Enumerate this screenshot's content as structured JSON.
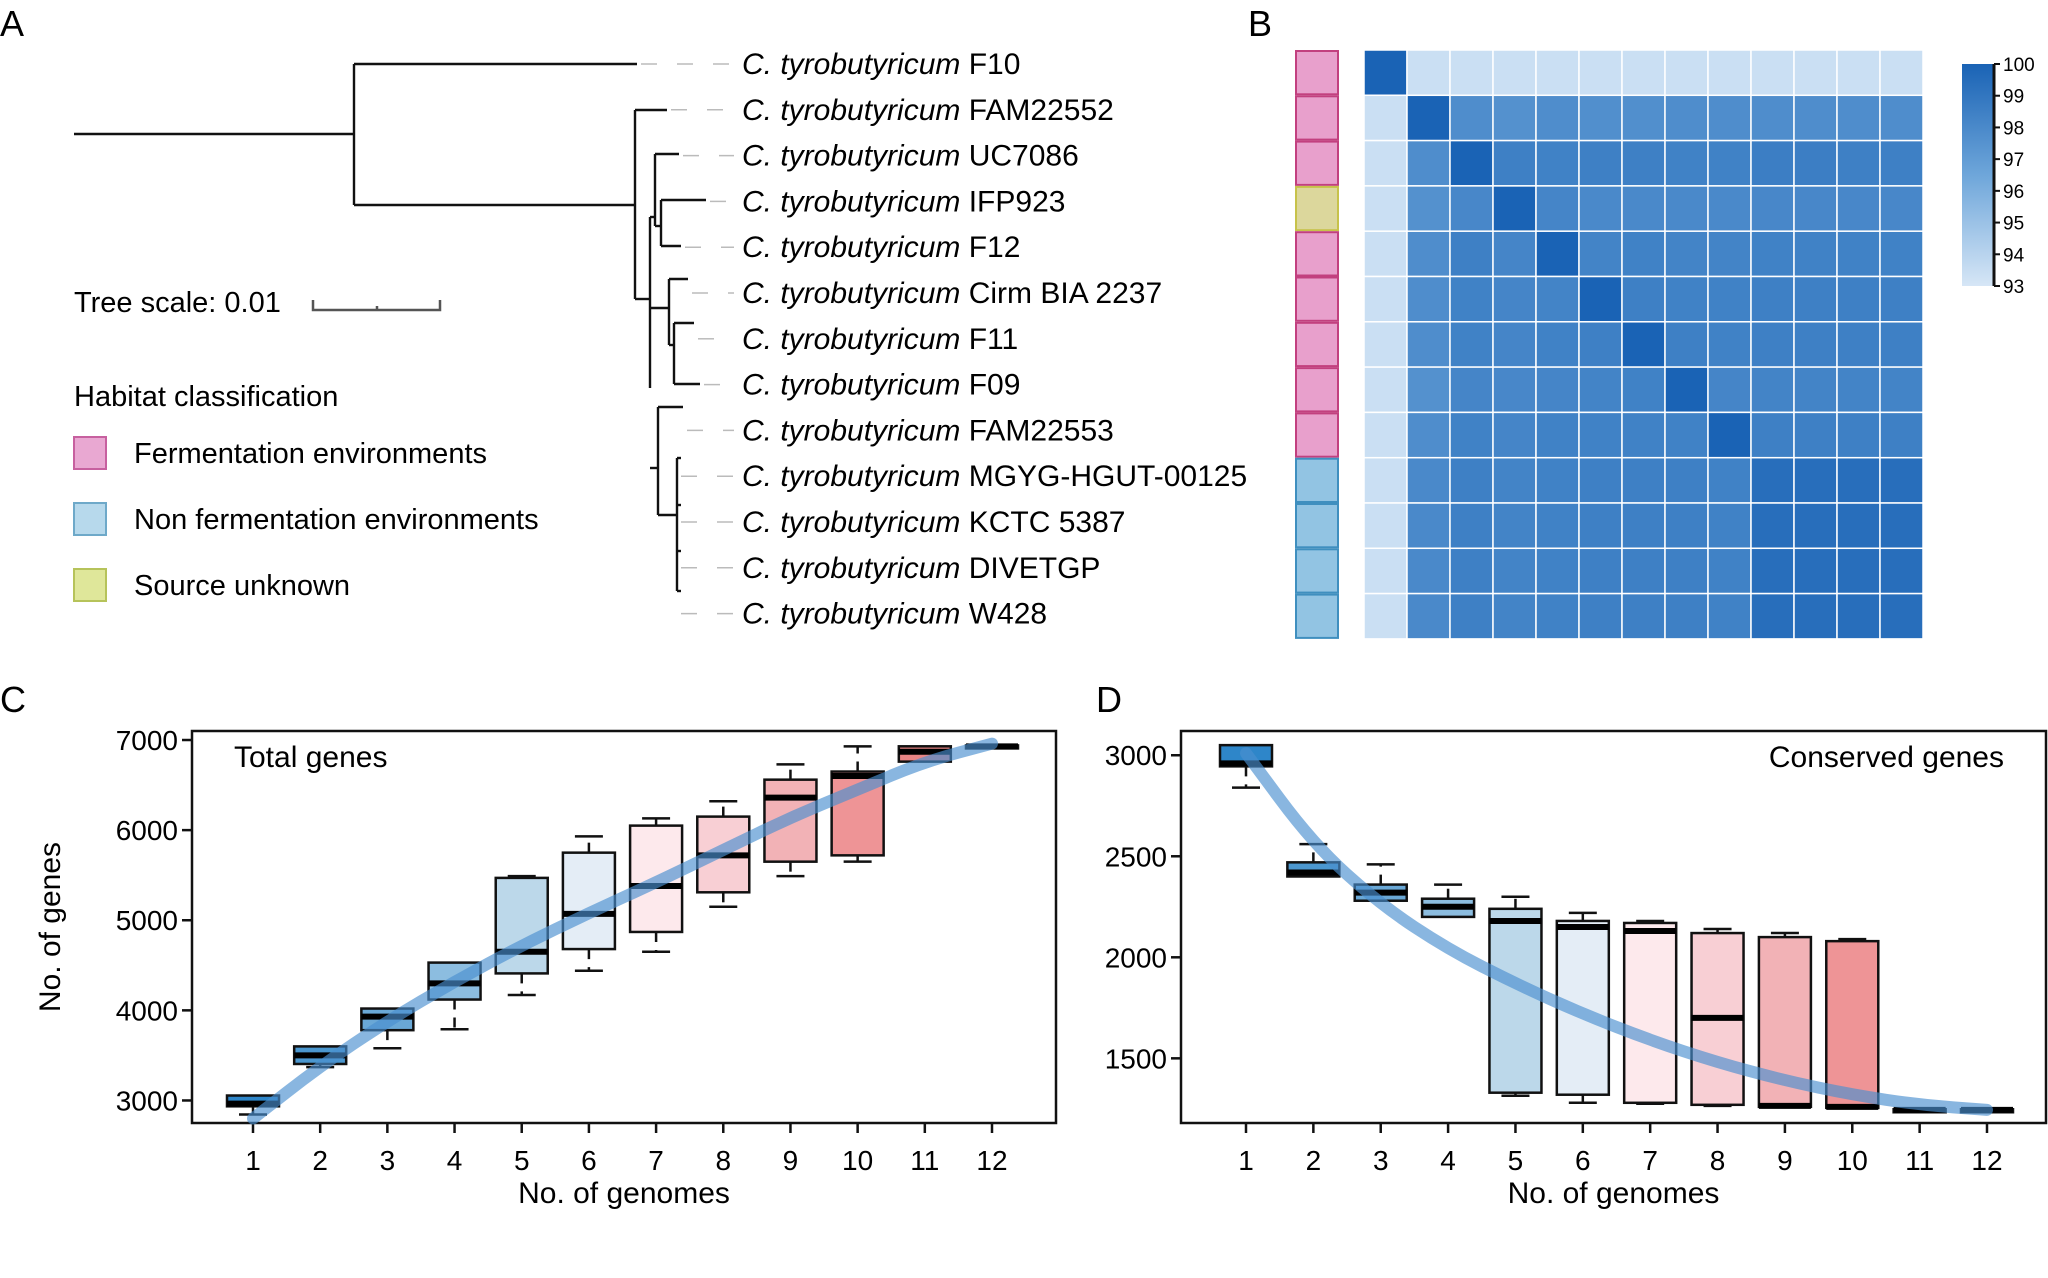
{
  "panels": {
    "A": {
      "label": "A",
      "tree_scale_label": "Tree scale: 0.01",
      "legend_title": "Habitat classification",
      "legend": [
        {
          "label": "Fermentation environments",
          "fill": "#e9a8d2",
          "stroke": "#c7609f"
        },
        {
          "label": "Non fermentation environments",
          "fill": "#b7d9ec",
          "stroke": "#6ea9c9"
        },
        {
          "label": "Source unknown",
          "fill": "#dfe79a",
          "stroke": "#b6c35a"
        }
      ],
      "taxa": [
        {
          "genus": "C. tyrobutyricum",
          "strain": "F10",
          "habitat": 0
        },
        {
          "genus": "C. tyrobutyricum",
          "strain": "FAM22552",
          "habitat": 0
        },
        {
          "genus": "C. tyrobutyricum",
          "strain": "UC7086",
          "habitat": 0
        },
        {
          "genus": "C. tyrobutyricum",
          "strain": "IFP923",
          "habitat": 2
        },
        {
          "genus": "C. tyrobutyricum",
          "strain": "F12",
          "habitat": 0
        },
        {
          "genus": "C. tyrobutyricum",
          "strain": "Cirm BIA 2237",
          "habitat": 0
        },
        {
          "genus": "C. tyrobutyricum",
          "strain": "F11",
          "habitat": 0
        },
        {
          "genus": "C. tyrobutyricum",
          "strain": "F09",
          "habitat": 0
        },
        {
          "genus": "C. tyrobutyricum",
          "strain": "FAM22553",
          "habitat": 0
        },
        {
          "genus": "C. tyrobutyricum",
          "strain": "MGYG-HGUT-00125",
          "habitat": 1
        },
        {
          "genus": "C. tyrobutyricum",
          "strain": "KCTC 5387",
          "habitat": 1
        },
        {
          "genus": "C. tyrobutyricum",
          "strain": "DIVETGP",
          "habitat": 1
        },
        {
          "genus": "C. tyrobutyricum",
          "strain": "W428",
          "habitat": 1
        }
      ]
    },
    "B": {
      "label": "B",
      "annotation_colors": [
        {
          "fill": "#e8a0cc",
          "stroke": "#c2407f"
        },
        {
          "fill": "#92c4e3",
          "stroke": "#3f8fbf"
        },
        {
          "fill": "#dcd79c",
          "stroke": "#c7c24a"
        }
      ],
      "colorbar": {
        "min": 93,
        "max": 100,
        "ticks": [
          "100",
          "99",
          "98",
          "97",
          "96",
          "95",
          "94",
          "93"
        ],
        "low_color": "#d3e4f5",
        "high_color": "#1a63b5"
      }
    },
    "C": {
      "label": "C"
    },
    "D": {
      "label": "D"
    }
  },
  "chart_data": [
    {
      "type": "heatmap",
      "title": "ANI heatmap",
      "rows": [
        "F10",
        "FAM22552",
        "UC7086",
        "IFP923",
        "F12",
        "Cirm BIA 2237",
        "F11",
        "F09",
        "FAM22553",
        "MGYG-HGUT-00125",
        "KCTC 5387",
        "DIVETGP",
        "W428"
      ],
      "cols": [
        "F10",
        "FAM22552",
        "UC7086",
        "IFP923",
        "F12",
        "Cirm BIA 2237",
        "F11",
        "F09",
        "FAM22553",
        "MGYG-HGUT-00125",
        "KCTC 5387",
        "DIVETGP",
        "W428"
      ],
      "value_range": [
        93,
        100
      ],
      "values": [
        [
          100,
          93.3,
          93.3,
          93.3,
          93.3,
          93.3,
          93.3,
          93.3,
          93.3,
          93.3,
          93.3,
          93.3,
          93.3
        ],
        [
          93.3,
          100,
          97.8,
          97.6,
          97.8,
          97.7,
          97.7,
          97.8,
          97.8,
          97.8,
          97.8,
          97.8,
          97.8
        ],
        [
          93.3,
          97.8,
          100,
          98.5,
          98.4,
          98.5,
          98.5,
          98.4,
          98.4,
          98.6,
          98.6,
          98.5,
          98.5
        ],
        [
          93.3,
          97.6,
          98.1,
          100,
          98.2,
          98.0,
          98.0,
          98.0,
          98.0,
          98.1,
          98.1,
          98.1,
          98.1
        ],
        [
          93.3,
          97.8,
          98.5,
          98.2,
          100,
          98.3,
          98.4,
          98.3,
          98.3,
          98.4,
          98.4,
          98.4,
          98.4
        ],
        [
          93.3,
          97.8,
          98.4,
          98.2,
          98.3,
          100,
          98.5,
          98.4,
          98.4,
          98.5,
          98.5,
          98.5,
          98.5
        ],
        [
          93.3,
          97.8,
          98.4,
          98.2,
          98.4,
          98.5,
          100,
          98.5,
          98.4,
          98.5,
          98.5,
          98.5,
          98.5
        ],
        [
          93.3,
          97.6,
          98.2,
          98.1,
          98.2,
          98.3,
          98.4,
          100,
          98.2,
          98.3,
          98.3,
          98.3,
          98.3
        ],
        [
          93.3,
          97.8,
          98.4,
          98.2,
          98.4,
          98.4,
          98.4,
          98.4,
          100,
          98.5,
          98.5,
          98.5,
          98.5
        ],
        [
          93.3,
          98.0,
          98.5,
          98.3,
          98.4,
          98.5,
          98.5,
          98.5,
          98.4,
          99.4,
          99.4,
          99.4,
          99.4
        ],
        [
          93.3,
          98.0,
          98.5,
          98.3,
          98.4,
          98.5,
          98.5,
          98.5,
          98.4,
          99.4,
          99.4,
          99.4,
          99.4
        ],
        [
          93.3,
          98.0,
          98.5,
          98.3,
          98.4,
          98.5,
          98.5,
          98.5,
          98.4,
          99.4,
          99.4,
          99.4,
          99.4
        ],
        [
          93.3,
          98.0,
          98.5,
          98.3,
          98.4,
          98.5,
          98.5,
          98.5,
          98.4,
          99.4,
          99.4,
          99.4,
          99.4
        ]
      ],
      "colorbar_ticks": [
        100,
        99,
        98,
        97,
        96,
        95,
        94,
        93
      ]
    },
    {
      "type": "box",
      "title": "Total genes",
      "xlabel": "No. of genomes",
      "ylabel": "No. of genes",
      "x": [
        1,
        2,
        3,
        4,
        5,
        6,
        7,
        8,
        9,
        10,
        11,
        12
      ],
      "ylim": [
        2750,
        7100
      ],
      "yticks": [
        3000,
        4000,
        5000,
        6000,
        7000
      ],
      "boxes": [
        {
          "x": 1,
          "low": 2845,
          "q1": 2935,
          "median": 2965,
          "q3": 3055,
          "high": 3055
        },
        {
          "x": 2,
          "low": 3370,
          "q1": 3405,
          "median": 3500,
          "q3": 3600,
          "high": 3600
        },
        {
          "x": 3,
          "low": 3580,
          "q1": 3780,
          "median": 3930,
          "q3": 4020,
          "high": 4020
        },
        {
          "x": 4,
          "low": 3790,
          "q1": 4120,
          "median": 4300,
          "q3": 4530,
          "high": 4530
        },
        {
          "x": 5,
          "low": 4170,
          "q1": 4410,
          "median": 4650,
          "q3": 5470,
          "high": 5490
        },
        {
          "x": 6,
          "low": 4440,
          "q1": 4680,
          "median": 5070,
          "q3": 5750,
          "high": 5930
        },
        {
          "x": 7,
          "low": 4650,
          "q1": 4870,
          "median": 5380,
          "q3": 6050,
          "high": 6130
        },
        {
          "x": 8,
          "low": 5150,
          "q1": 5310,
          "median": 5720,
          "q3": 6150,
          "high": 6320
        },
        {
          "x": 9,
          "low": 5490,
          "q1": 5650,
          "median": 6360,
          "q3": 6560,
          "high": 6730
        },
        {
          "x": 10,
          "low": 5650,
          "q1": 5720,
          "median": 6600,
          "q3": 6650,
          "high": 6930
        },
        {
          "x": 11,
          "low": 6760,
          "q1": 6760,
          "median": 6870,
          "q3": 6930,
          "high": 6930
        },
        {
          "x": 12,
          "low": 6920,
          "q1": 6920,
          "median": 6930,
          "q3": 6940,
          "high": 6940
        }
      ],
      "fit_curve": {
        "x": [
          1,
          2,
          3,
          4,
          5,
          6,
          7,
          8,
          9,
          10,
          11,
          12
        ],
        "y": [
          2800,
          3380,
          3880,
          4320,
          4720,
          5080,
          5420,
          5780,
          6140,
          6450,
          6760,
          6960
        ]
      },
      "box_colors": [
        "#2e86c9",
        "#4b97cf",
        "#6aa8d6",
        "#8cbde0",
        "#bcd8ea",
        "#e4edf6",
        "#fde9ec",
        "#f8cfd4",
        "#f2b2b6",
        "#ee9496",
        "#e98585",
        "#2e86c9"
      ]
    },
    {
      "type": "box",
      "title": "Conserved genes",
      "xlabel": "No. of genomes",
      "ylabel": "",
      "x": [
        1,
        2,
        3,
        4,
        5,
        6,
        7,
        8,
        9,
        10,
        11,
        12
      ],
      "ylim": [
        1180,
        3120
      ],
      "yticks": [
        1500,
        2000,
        2500,
        3000
      ],
      "boxes": [
        {
          "x": 1,
          "low": 2840,
          "q1": 2945,
          "median": 2960,
          "q3": 3050,
          "high": 3050
        },
        {
          "x": 2,
          "low": 2400,
          "q1": 2400,
          "median": 2420,
          "q3": 2470,
          "high": 2560
        },
        {
          "x": 3,
          "low": 2280,
          "q1": 2280,
          "median": 2320,
          "q3": 2360,
          "high": 2460
        },
        {
          "x": 4,
          "low": 2200,
          "q1": 2200,
          "median": 2250,
          "q3": 2290,
          "high": 2360
        },
        {
          "x": 5,
          "low": 1315,
          "q1": 1330,
          "median": 2180,
          "q3": 2240,
          "high": 2300
        },
        {
          "x": 6,
          "low": 1280,
          "q1": 1320,
          "median": 2150,
          "q3": 2180,
          "high": 2220
        },
        {
          "x": 7,
          "low": 1275,
          "q1": 1280,
          "median": 2130,
          "q3": 2170,
          "high": 2180
        },
        {
          "x": 8,
          "low": 1265,
          "q1": 1270,
          "median": 1700,
          "q3": 2120,
          "high": 2140
        },
        {
          "x": 9,
          "low": 1260,
          "q1": 1260,
          "median": 1265,
          "q3": 2100,
          "high": 2120
        },
        {
          "x": 10,
          "low": 1255,
          "q1": 1255,
          "median": 1260,
          "q3": 2080,
          "high": 2090
        },
        {
          "x": 11,
          "low": 1243,
          "q1": 1243,
          "median": 1245,
          "q3": 1248,
          "high": 1248
        },
        {
          "x": 12,
          "low": 1243,
          "q1": 1243,
          "median": 1245,
          "q3": 1248,
          "high": 1248
        }
      ],
      "fit_curve": {
        "x": [
          1,
          2,
          3,
          4,
          5,
          6,
          7,
          8,
          9,
          10,
          11,
          12
        ],
        "y": [
          3010,
          2560,
          2260,
          2040,
          1870,
          1720,
          1590,
          1480,
          1390,
          1320,
          1270,
          1245
        ]
      },
      "box_colors": [
        "#2e86c9",
        "#4b97cf",
        "#6aa8d6",
        "#8cbde0",
        "#bcd8ea",
        "#e4edf6",
        "#fde9ec",
        "#f8cfd4",
        "#f2b2b6",
        "#ee9496",
        "#2e86c9",
        "#2e86c9"
      ]
    }
  ]
}
